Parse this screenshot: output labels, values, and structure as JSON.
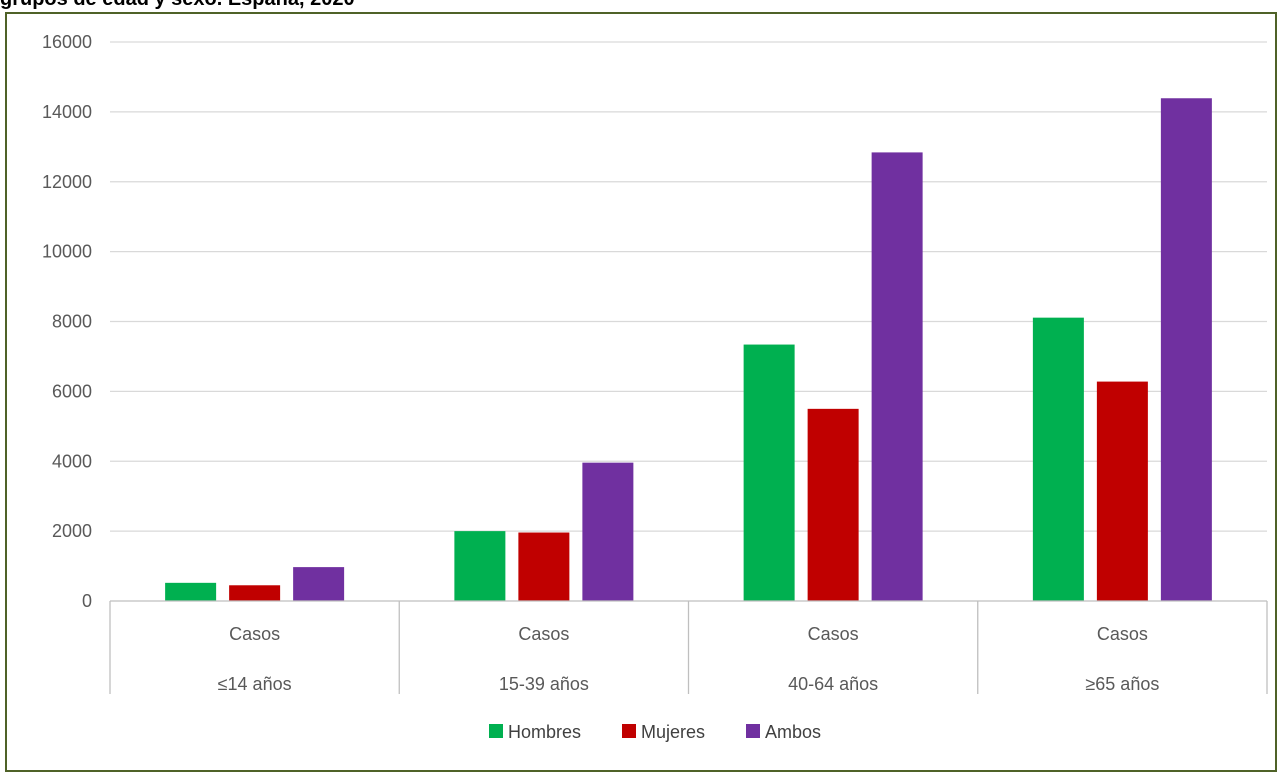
{
  "page": {
    "heading_fragment": "grupos de edad y sexo. España, 2020"
  },
  "chart_data": {
    "type": "bar",
    "categories": [
      {
        "top": "Casos",
        "bottom": "≤14 años"
      },
      {
        "top": "Casos",
        "bottom": "15-39 años"
      },
      {
        "top": "Casos",
        "bottom": "40-64 años"
      },
      {
        "top": "Casos",
        "bottom": "≥65 años"
      }
    ],
    "series": [
      {
        "name": "Hombres",
        "color": "#00b050",
        "values": [
          520,
          2000,
          7340,
          8110
        ]
      },
      {
        "name": "Mujeres",
        "color": "#c00000",
        "values": [
          450,
          1960,
          5500,
          6280
        ]
      },
      {
        "name": "Ambos",
        "color": "#7030a0",
        "values": [
          970,
          3960,
          12840,
          14390
        ]
      }
    ],
    "yticks": [
      "0",
      "2000",
      "4000",
      "6000",
      "8000",
      "10000",
      "12000",
      "14000",
      "16000"
    ],
    "ylim": [
      0,
      16000
    ],
    "grid": true,
    "legend": "bottom"
  }
}
